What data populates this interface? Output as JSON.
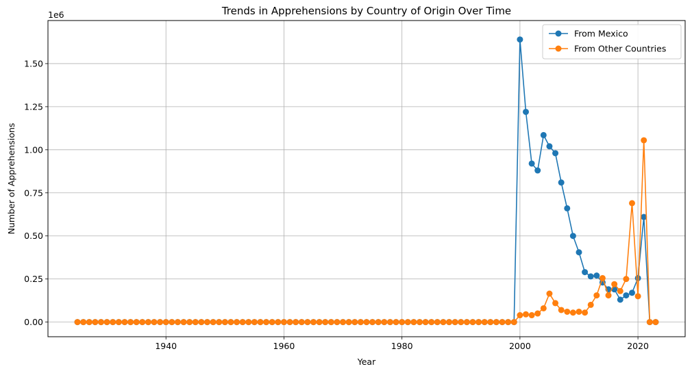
{
  "chart_data": {
    "type": "line",
    "title": "Trends in Apprehensions by Country of Origin Over Time",
    "xlabel": "Year",
    "ylabel": "Number of Apprehensions",
    "y_offset_label": "1e6",
    "xlim": [
      1920,
      2028
    ],
    "ylim": [
      -0.085,
      1.75
    ],
    "x_ticks": [
      1940,
      1960,
      1980,
      2000,
      2020
    ],
    "x_tick_labels": [
      "1940",
      "1960",
      "1980",
      "2000",
      "2020"
    ],
    "y_ticks": [
      0,
      0.25,
      0.5,
      0.75,
      1.0,
      1.25,
      1.5
    ],
    "y_tick_labels": [
      "0.00",
      "0.25",
      "0.50",
      "0.75",
      "1.00",
      "1.25",
      "1.50"
    ],
    "grid": true,
    "legend_position": "top-right",
    "x_start": 1925,
    "x_end": 2023,
    "series": [
      {
        "name": "From Mexico",
        "color": "#1f77b4",
        "zero_until": 1999,
        "values": {
          "2000": 1.64,
          "2001": 1.22,
          "2002": 0.92,
          "2003": 0.88,
          "2004": 1.085,
          "2005": 1.02,
          "2006": 0.98,
          "2007": 0.81,
          "2008": 0.66,
          "2009": 0.5,
          "2010": 0.405,
          "2011": 0.29,
          "2012": 0.265,
          "2013": 0.27,
          "2014": 0.23,
          "2015": 0.19,
          "2016": 0.19,
          "2017": 0.13,
          "2018": 0.155,
          "2019": 0.17,
          "2020": 0.255,
          "2021": 0.61,
          "2022": 0.0,
          "2023": 0.0
        }
      },
      {
        "name": "From Other Countries",
        "color": "#ff7f0e",
        "zero_until": 1999,
        "values": {
          "2000": 0.04,
          "2001": 0.045,
          "2002": 0.04,
          "2003": 0.05,
          "2004": 0.08,
          "2005": 0.165,
          "2006": 0.11,
          "2007": 0.07,
          "2008": 0.06,
          "2009": 0.055,
          "2010": 0.06,
          "2011": 0.055,
          "2012": 0.1,
          "2013": 0.155,
          "2014": 0.255,
          "2015": 0.155,
          "2016": 0.22,
          "2017": 0.18,
          "2018": 0.25,
          "2019": 0.69,
          "2020": 0.15,
          "2021": 1.055,
          "2022": 0.0,
          "2023": 0.0
        }
      }
    ]
  }
}
